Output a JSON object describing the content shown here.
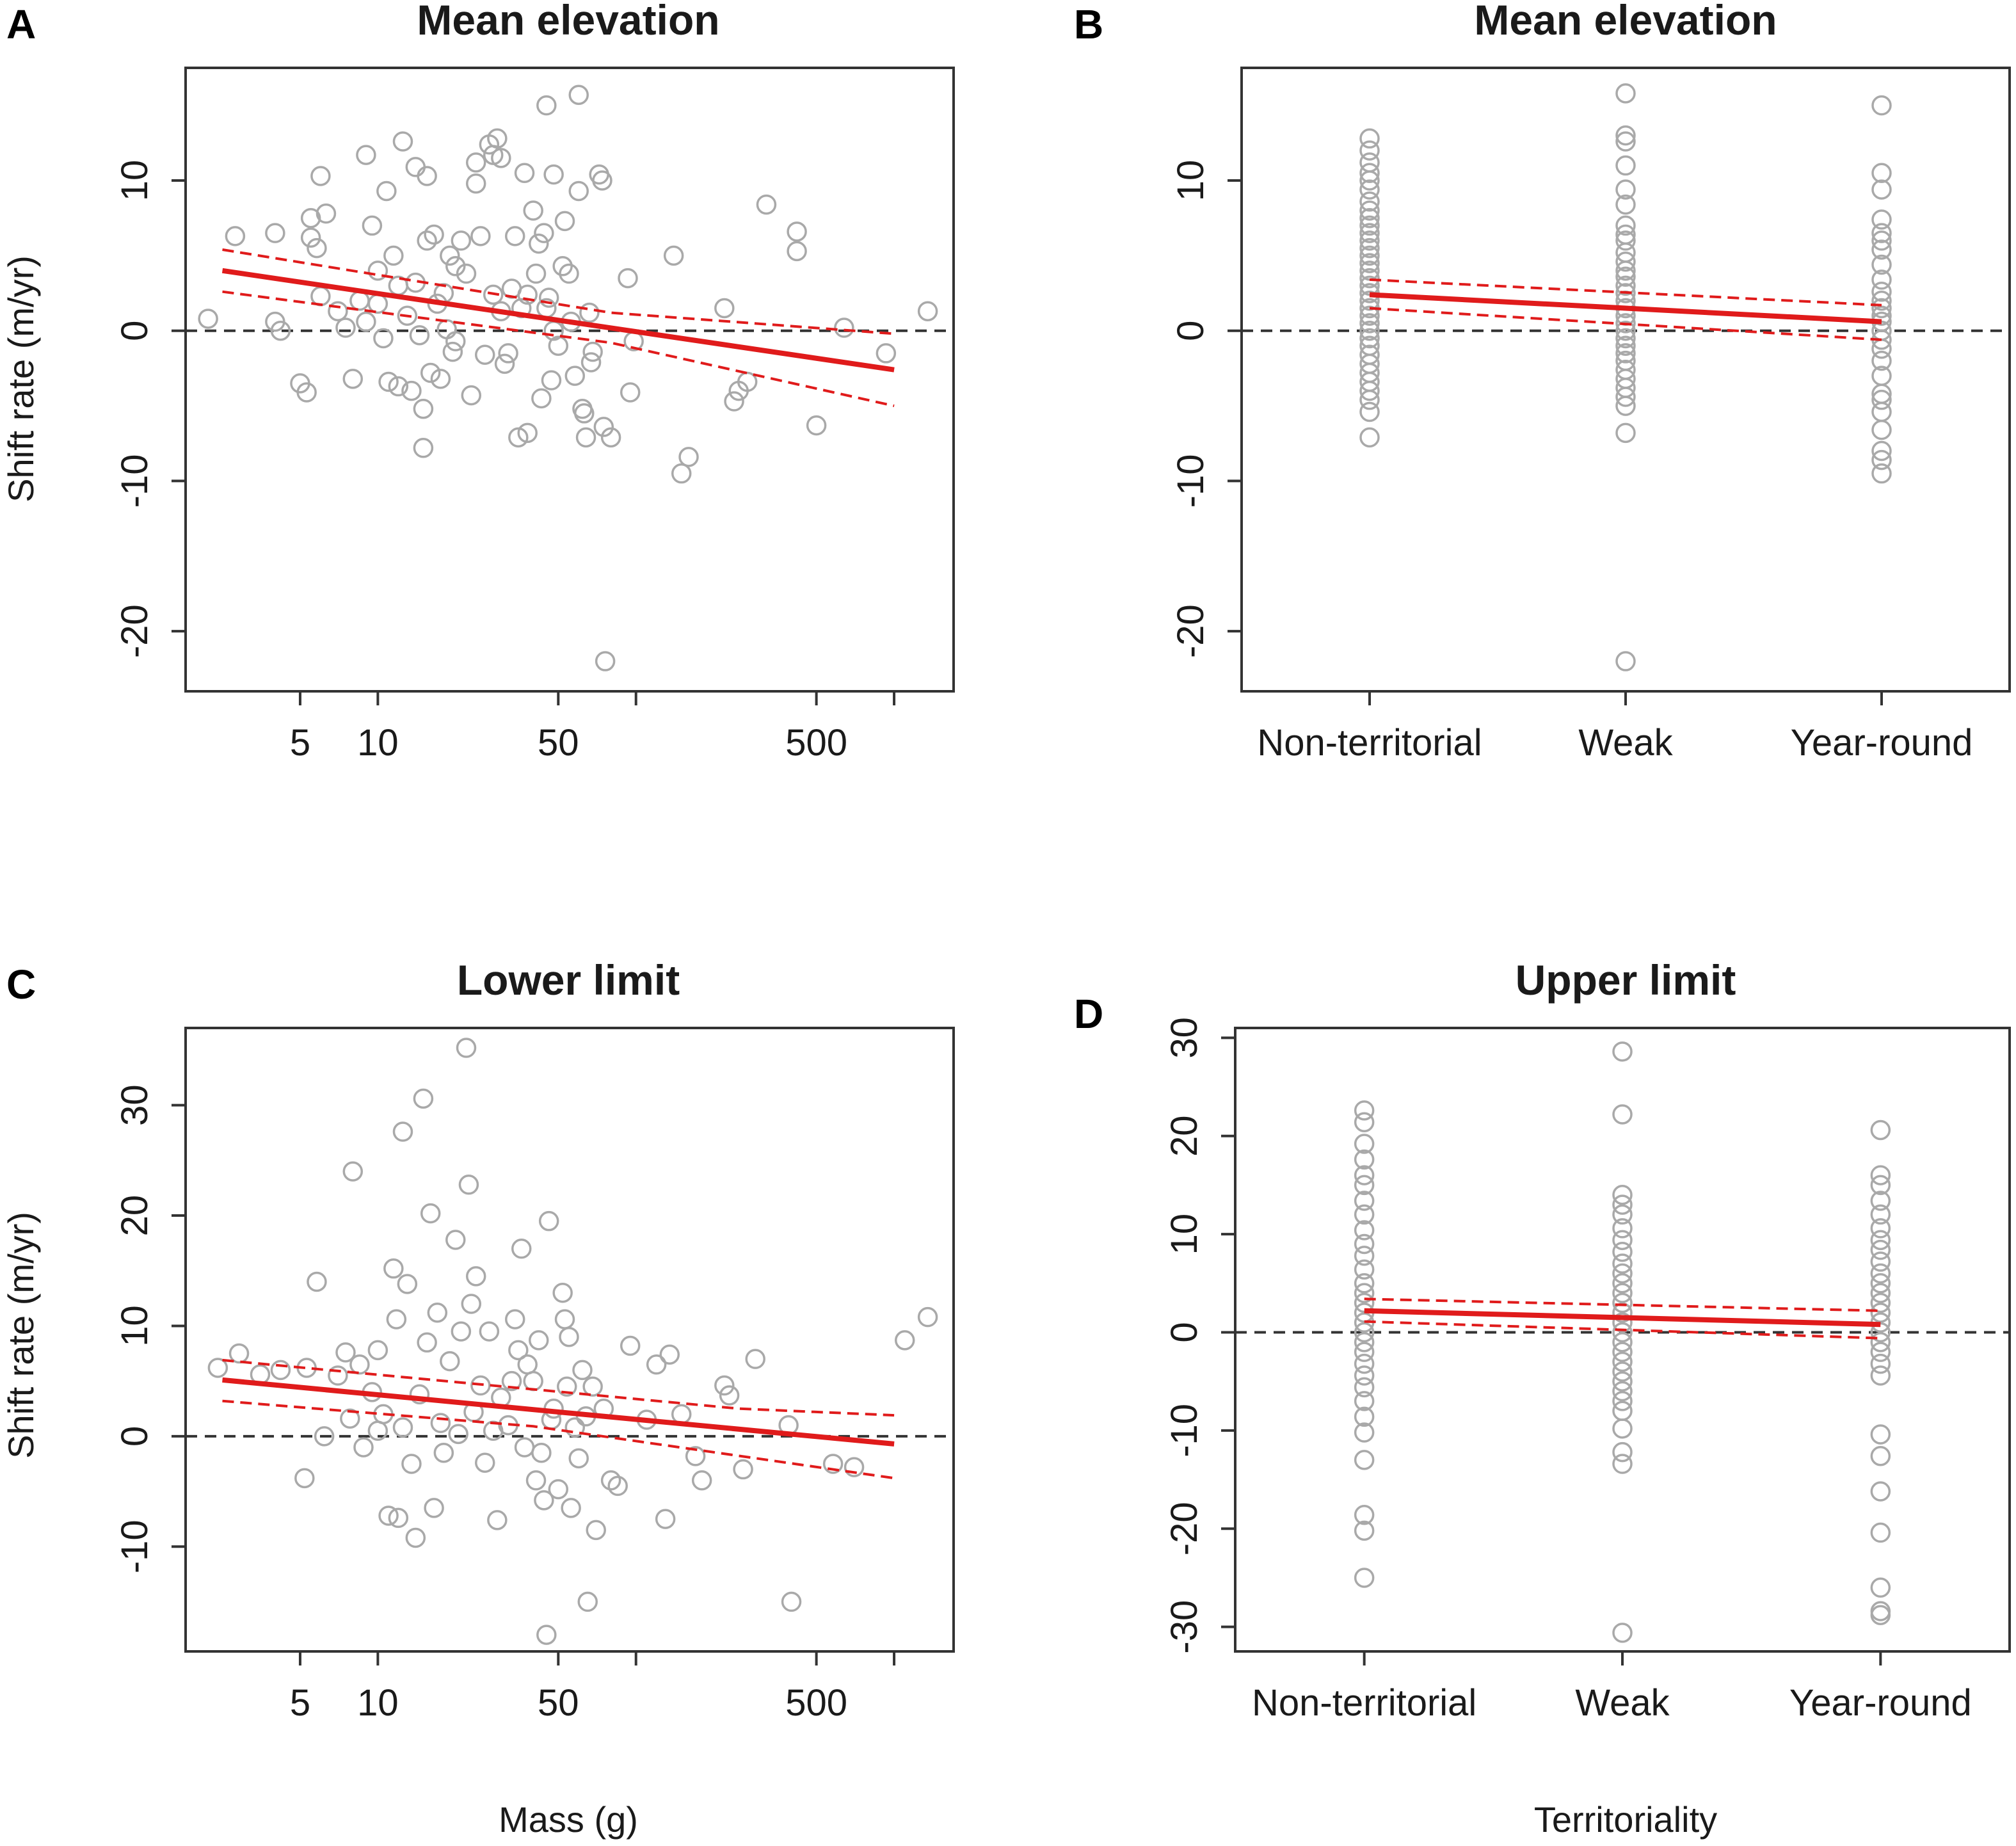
{
  "colors": {
    "points": "#a9a9a9",
    "fit": "#e01b1b",
    "zero": "#333333"
  },
  "chart_data": [
    {
      "letter": "A",
      "type": "scatter",
      "title": "Mean elevation",
      "xlabel": "",
      "ylabel": "Shift rate (m/yr)",
      "xscale": "log",
      "xlim": [
        1.8,
        1700
      ],
      "ylim": [
        -24,
        17.5
      ],
      "xticks": [
        5,
        10,
        50,
        100,
        500,
        1000
      ],
      "xtick_labels": [
        "5",
        "10",
        "50",
        "",
        "500",
        ""
      ],
      "yticks": [
        -20,
        -10,
        0,
        10
      ],
      "ytick_labels": [
        "-20",
        "-10",
        "0",
        "10"
      ],
      "fit": {
        "x": [
          2.5,
          1000
        ],
        "y": [
          4.0,
          -2.6
        ]
      },
      "ci_upper": {
        "x": [
          2.5,
          80,
          1000
        ],
        "y": [
          5.4,
          1.2,
          -0.2
        ]
      },
      "ci_lower": {
        "x": [
          2.5,
          80,
          1000
        ],
        "y": [
          2.6,
          -0.8,
          -5.0
        ]
      },
      "points": [
        [
          2.2,
          0.8
        ],
        [
          2.8,
          6.3
        ],
        [
          4.0,
          6.5
        ],
        [
          4.0,
          0.6
        ],
        [
          4.2,
          0.0
        ],
        [
          5.0,
          -3.5
        ],
        [
          5.3,
          -4.1
        ],
        [
          5.5,
          7.5
        ],
        [
          5.5,
          6.2
        ],
        [
          5.8,
          5.5
        ],
        [
          6.0,
          10.3
        ],
        [
          6.3,
          7.8
        ],
        [
          6.0,
          2.3
        ],
        [
          7.0,
          1.3
        ],
        [
          7.5,
          0.2
        ],
        [
          8.0,
          -3.2
        ],
        [
          8.5,
          2.0
        ],
        [
          9.0,
          11.7
        ],
        [
          9.0,
          0.6
        ],
        [
          9.5,
          7.0
        ],
        [
          10.0,
          4.0
        ],
        [
          10.0,
          1.8
        ],
        [
          10.5,
          -0.5
        ],
        [
          10.8,
          9.3
        ],
        [
          11.0,
          -3.4
        ],
        [
          11.5,
          5.0
        ],
        [
          12.0,
          3.0
        ],
        [
          12.0,
          -3.7
        ],
        [
          12.5,
          12.6
        ],
        [
          13.0,
          1.0
        ],
        [
          13.5,
          -4.0
        ],
        [
          14.0,
          10.9
        ],
        [
          14.0,
          3.2
        ],
        [
          14.5,
          -0.3
        ],
        [
          15.0,
          -5.2
        ],
        [
          15.0,
          -7.8
        ],
        [
          15.5,
          6.0
        ],
        [
          15.5,
          10.3
        ],
        [
          16.0,
          -2.8
        ],
        [
          16.5,
          6.4
        ],
        [
          17.0,
          1.8
        ],
        [
          17.5,
          -3.2
        ],
        [
          18.0,
          2.5
        ],
        [
          18.5,
          0.1
        ],
        [
          19.0,
          5.0
        ],
        [
          19.5,
          -1.4
        ],
        [
          20.0,
          4.3
        ],
        [
          20.0,
          -0.7
        ],
        [
          21.0,
          6.0
        ],
        [
          22.0,
          3.8
        ],
        [
          23.0,
          -4.3
        ],
        [
          24.0,
          11.2
        ],
        [
          24.0,
          9.8
        ],
        [
          25.0,
          6.3
        ],
        [
          26.0,
          -1.6
        ],
        [
          27.0,
          12.4
        ],
        [
          28.0,
          11.7
        ],
        [
          28.0,
          2.4
        ],
        [
          29.0,
          12.8
        ],
        [
          30.0,
          11.5
        ],
        [
          30.0,
          1.3
        ],
        [
          31.0,
          -2.2
        ],
        [
          32.0,
          -1.5
        ],
        [
          33.0,
          2.8
        ],
        [
          34.0,
          6.3
        ],
        [
          35.0,
          -7.1
        ],
        [
          36.0,
          1.5
        ],
        [
          37.0,
          10.5
        ],
        [
          38.0,
          -6.8
        ],
        [
          38.0,
          2.4
        ],
        [
          40.0,
          8.0
        ],
        [
          41.0,
          3.8
        ],
        [
          42.0,
          5.8
        ],
        [
          43.0,
          -4.5
        ],
        [
          44.0,
          6.5
        ],
        [
          45.0,
          1.5
        ],
        [
          45.0,
          15.0
        ],
        [
          46.0,
          2.2
        ],
        [
          47.0,
          -3.3
        ],
        [
          48.0,
          10.4
        ],
        [
          48.0,
          0.0
        ],
        [
          50.0,
          -1.0
        ],
        [
          52.0,
          4.3
        ],
        [
          53.0,
          7.3
        ],
        [
          55.0,
          3.8
        ],
        [
          56.0,
          0.6
        ],
        [
          58.0,
          -3.0
        ],
        [
          60.0,
          15.7
        ],
        [
          60.0,
          9.3
        ],
        [
          62.0,
          -5.2
        ],
        [
          63.0,
          -5.5
        ],
        [
          64.0,
          -7.1
        ],
        [
          66.0,
          1.2
        ],
        [
          67.0,
          -2.1
        ],
        [
          68.0,
          -1.4
        ],
        [
          72.0,
          10.4
        ],
        [
          74.0,
          10.0
        ],
        [
          75.0,
          -6.4
        ],
        [
          76.0,
          -22.0
        ],
        [
          80.0,
          -7.1
        ],
        [
          93.0,
          3.5
        ],
        [
          95.0,
          -4.1
        ],
        [
          98.0,
          -0.7
        ],
        [
          140.0,
          5.0
        ],
        [
          150.0,
          -9.5
        ],
        [
          160.0,
          -8.4
        ],
        [
          220.0,
          1.5
        ],
        [
          240.0,
          -4.7
        ],
        [
          250.0,
          -4.0
        ],
        [
          270.0,
          -3.4
        ],
        [
          320.0,
          8.4
        ],
        [
          420.0,
          6.6
        ],
        [
          420.0,
          5.3
        ],
        [
          500.0,
          -6.3
        ],
        [
          640.0,
          0.2
        ],
        [
          930.0,
          -1.5
        ],
        [
          1350.0,
          1.3
        ]
      ]
    },
    {
      "letter": "B",
      "type": "scatter",
      "title": "Mean elevation",
      "xlabel": "",
      "ylabel": "",
      "categories": [
        "Non-territorial",
        "Weak",
        "Year-round"
      ],
      "xlim": [
        0.5,
        3.5
      ],
      "ylim": [
        -24,
        17.5
      ],
      "yticks": [
        -20,
        -10,
        0,
        10
      ],
      "ytick_labels": [
        "-20",
        "-10",
        "0",
        "10"
      ],
      "fit": {
        "x": [
          1,
          3
        ],
        "y": [
          2.4,
          0.6
        ]
      },
      "ci_upper": {
        "x": [
          1,
          3
        ],
        "y": [
          3.4,
          1.7
        ]
      },
      "ci_lower": {
        "x": [
          1,
          3
        ],
        "y": [
          1.5,
          -0.6
        ]
      },
      "series": [
        {
          "name": "Non-territorial",
          "values": [
            12.8,
            12.0,
            11.2,
            10.5,
            10.0,
            9.4,
            8.6,
            8.0,
            7.5,
            7.0,
            6.5,
            6.0,
            5.5,
            5.0,
            4.5,
            4.0,
            3.5,
            3.0,
            2.5,
            2.0,
            1.5,
            1.0,
            0.5,
            0.0,
            -0.5,
            -1.0,
            -1.6,
            -2.2,
            -2.8,
            -3.4,
            -4.0,
            -4.6,
            -5.4,
            -7.1
          ]
        },
        {
          "name": "Weak",
          "values": [
            15.8,
            13.0,
            12.6,
            11.0,
            9.4,
            8.4,
            7.0,
            6.4,
            6.0,
            5.2,
            4.6,
            4.0,
            3.6,
            3.0,
            2.5,
            2.0,
            1.5,
            1.0,
            0.5,
            0.0,
            -0.5,
            -1.0,
            -1.5,
            -2.0,
            -2.6,
            -3.2,
            -3.8,
            -4.4,
            -5.0,
            -6.8,
            -22.0
          ]
        },
        {
          "name": "Year-round",
          "values": [
            15.0,
            10.5,
            9.4,
            7.4,
            6.5,
            6.0,
            5.4,
            4.4,
            3.4,
            2.6,
            2.0,
            1.5,
            1.0,
            0.6,
            0.0,
            -0.6,
            -1.2,
            -2.0,
            -3.0,
            -4.2,
            -4.6,
            -5.4,
            -6.6,
            -8.0,
            -8.6,
            -9.5
          ]
        }
      ]
    },
    {
      "letter": "C",
      "type": "scatter",
      "title": "Lower limit",
      "xlabel": "Mass (g)",
      "ylabel": "Shift rate (m/yr)",
      "xscale": "log",
      "xlim": [
        1.8,
        1700
      ],
      "ylim": [
        -19.5,
        37
      ],
      "xticks": [
        5,
        10,
        50,
        100,
        500,
        1000
      ],
      "xtick_labels": [
        "5",
        "10",
        "50",
        "",
        "500",
        ""
      ],
      "yticks": [
        -10,
        0,
        10,
        20,
        30
      ],
      "ytick_labels": [
        "-10",
        "0",
        "10",
        "20",
        "30"
      ],
      "fit": {
        "x": [
          2.5,
          1000
        ],
        "y": [
          5.1,
          -0.7
        ]
      },
      "ci_upper": {
        "x": [
          2.5,
          250,
          1000
        ],
        "y": [
          6.9,
          2.5,
          1.9
        ]
      },
      "ci_lower": {
        "x": [
          2.5,
          40,
          1000
        ],
        "y": [
          3.2,
          0.9,
          -3.8
        ]
      },
      "points": [
        [
          2.4,
          6.2
        ],
        [
          2.9,
          7.5
        ],
        [
          3.5,
          5.6
        ],
        [
          4.2,
          6.0
        ],
        [
          5.2,
          -3.8
        ],
        [
          5.3,
          6.2
        ],
        [
          5.8,
          14.0
        ],
        [
          6.2,
          0.0
        ],
        [
          7.0,
          5.5
        ],
        [
          7.5,
          7.6
        ],
        [
          7.8,
          1.6
        ],
        [
          8.0,
          24.0
        ],
        [
          8.5,
          6.5
        ],
        [
          8.8,
          -1.0
        ],
        [
          9.5,
          4.0
        ],
        [
          10.0,
          7.8
        ],
        [
          10.0,
          0.5
        ],
        [
          10.5,
          2.0
        ],
        [
          11.0,
          -7.2
        ],
        [
          11.5,
          15.2
        ],
        [
          11.8,
          10.6
        ],
        [
          12.0,
          -7.4
        ],
        [
          12.5,
          27.6
        ],
        [
          12.5,
          0.8
        ],
        [
          13.0,
          13.8
        ],
        [
          13.5,
          -2.5
        ],
        [
          14.0,
          -9.2
        ],
        [
          14.5,
          3.8
        ],
        [
          15.0,
          30.6
        ],
        [
          15.5,
          8.5
        ],
        [
          16.0,
          20.2
        ],
        [
          16.5,
          -6.5
        ],
        [
          17.0,
          11.2
        ],
        [
          17.5,
          1.2
        ],
        [
          18.0,
          -1.5
        ],
        [
          19.0,
          6.8
        ],
        [
          20.0,
          17.8
        ],
        [
          20.5,
          0.2
        ],
        [
          21.0,
          9.5
        ],
        [
          22.0,
          35.2
        ],
        [
          22.5,
          22.8
        ],
        [
          23.0,
          12.0
        ],
        [
          23.5,
          2.2
        ],
        [
          24.0,
          14.5
        ],
        [
          25.0,
          4.6
        ],
        [
          26.0,
          -2.4
        ],
        [
          27.0,
          9.5
        ],
        [
          28.0,
          0.5
        ],
        [
          29.0,
          -7.6
        ],
        [
          30.0,
          3.5
        ],
        [
          32.0,
          1.0
        ],
        [
          33.0,
          5.0
        ],
        [
          34.0,
          10.6
        ],
        [
          35.0,
          7.8
        ],
        [
          36.0,
          17.0
        ],
        [
          37.0,
          -1.0
        ],
        [
          38.0,
          6.5
        ],
        [
          40.0,
          5.0
        ],
        [
          41.0,
          -4.0
        ],
        [
          42.0,
          8.7
        ],
        [
          43.0,
          -1.5
        ],
        [
          44.0,
          -5.8
        ],
        [
          45.0,
          -18.0
        ],
        [
          46.0,
          19.5
        ],
        [
          47.0,
          1.5
        ],
        [
          48.0,
          2.5
        ],
        [
          50.0,
          -4.8
        ],
        [
          52.0,
          13.0
        ],
        [
          53.0,
          10.6
        ],
        [
          54.0,
          4.5
        ],
        [
          55.0,
          9.0
        ],
        [
          56.0,
          -6.5
        ],
        [
          58.0,
          0.8
        ],
        [
          60.0,
          -2.0
        ],
        [
          62.0,
          6.0
        ],
        [
          64.0,
          1.8
        ],
        [
          65.0,
          -15.0
        ],
        [
          68.0,
          4.5
        ],
        [
          70.0,
          -8.5
        ],
        [
          75.0,
          2.5
        ],
        [
          80.0,
          -4.0
        ],
        [
          85.0,
          -4.5
        ],
        [
          95.0,
          8.2
        ],
        [
          110.0,
          1.5
        ],
        [
          120.0,
          6.5
        ],
        [
          130.0,
          -7.5
        ],
        [
          135.0,
          7.4
        ],
        [
          150.0,
          2.0
        ],
        [
          170.0,
          -1.8
        ],
        [
          180.0,
          -4.0
        ],
        [
          220.0,
          4.6
        ],
        [
          230.0,
          3.7
        ],
        [
          260.0,
          -3.0
        ],
        [
          290.0,
          7.0
        ],
        [
          390.0,
          1.0
        ],
        [
          400.0,
          -15.0
        ],
        [
          580.0,
          -2.5
        ],
        [
          700.0,
          -2.8
        ],
        [
          1100.0,
          8.7
        ],
        [
          1350.0,
          10.8
        ]
      ]
    },
    {
      "letter": "D",
      "type": "scatter",
      "title": "Upper limit",
      "xlabel": "Territoriality",
      "ylabel": "",
      "categories": [
        "Non-territorial",
        "Weak",
        "Year-round"
      ],
      "xlim": [
        0.5,
        3.5
      ],
      "ylim": [
        -32.5,
        31
      ],
      "yticks": [
        -30,
        -20,
        -10,
        0,
        10,
        20,
        30
      ],
      "ytick_labels": [
        "-30",
        "-20",
        "-10",
        "0",
        "10",
        "20",
        "30"
      ],
      "fit": {
        "x": [
          1,
          3
        ],
        "y": [
          2.2,
          0.8
        ]
      },
      "ci_upper": {
        "x": [
          1,
          3
        ],
        "y": [
          3.4,
          2.2
        ]
      },
      "ci_lower": {
        "x": [
          1,
          3
        ],
        "y": [
          1.1,
          -0.6
        ]
      },
      "series": [
        {
          "name": "Non-territorial",
          "values": [
            22.6,
            21.4,
            19.2,
            17.6,
            16.0,
            15.0,
            13.4,
            12.0,
            10.4,
            9.0,
            7.8,
            6.4,
            5.0,
            4.0,
            3.0,
            2.0,
            1.0,
            0.0,
            -1.0,
            -2.0,
            -3.2,
            -4.4,
            -5.6,
            -7.0,
            -8.6,
            -10.2,
            -13.0,
            -18.6,
            -20.2,
            -25.0
          ]
        },
        {
          "name": "Weak",
          "values": [
            28.6,
            22.2,
            14.0,
            13.0,
            12.0,
            10.6,
            9.4,
            8.2,
            7.0,
            6.0,
            5.0,
            4.0,
            3.0,
            2.0,
            1.0,
            0.0,
            -1.0,
            -2.0,
            -3.0,
            -4.0,
            -5.0,
            -6.0,
            -7.0,
            -8.0,
            -9.8,
            -12.2,
            -13.4,
            -30.6
          ]
        },
        {
          "name": "Year-round",
          "values": [
            20.6,
            16.0,
            15.0,
            13.4,
            12.0,
            10.6,
            9.4,
            8.4,
            7.2,
            6.0,
            5.0,
            4.0,
            3.0,
            2.0,
            1.0,
            0.0,
            -1.0,
            -2.0,
            -3.2,
            -4.4,
            -10.4,
            -12.6,
            -16.2,
            -20.4,
            -26.0,
            -28.4,
            -28.8
          ]
        }
      ]
    }
  ]
}
